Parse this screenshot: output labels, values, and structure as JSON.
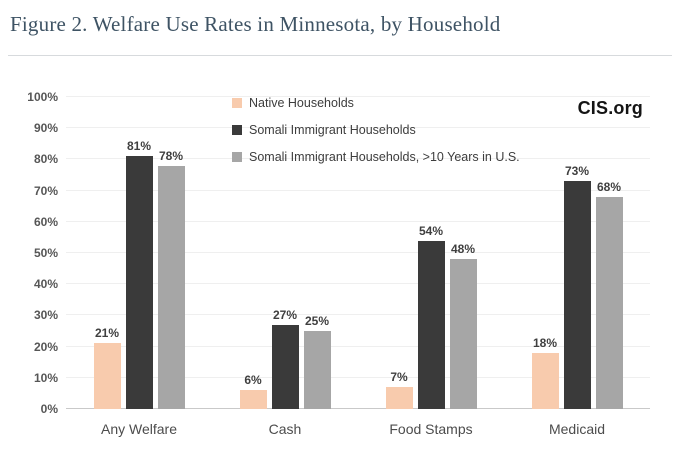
{
  "figure": {
    "title": "Figure 2. Welfare Use Rates in Minnesota, by Household",
    "source_label": "CIS.org"
  },
  "chart_data": {
    "type": "bar",
    "title": "Figure 2. Welfare Use Rates in Minnesota, by Household",
    "categories": [
      "Any Welfare",
      "Cash",
      "Food Stamps",
      "Medicaid"
    ],
    "series": [
      {
        "name": "Native Households",
        "color": "#f8cbad",
        "values": [
          21,
          6,
          7,
          18
        ]
      },
      {
        "name": "Somali Immigrant Households",
        "color": "#3a3a3a",
        "values": [
          81,
          27,
          54,
          73
        ]
      },
      {
        "name": "Somali Immigrant Households, >10 Years in U.S.",
        "color": "#a6a6a6",
        "values": [
          78,
          25,
          48,
          68
        ]
      }
    ],
    "value_label_format": "{v}%",
    "xlabel": "",
    "ylabel": "",
    "ylim": [
      0,
      100
    ],
    "ytick_step": 10,
    "yticks": [
      "0%",
      "10%",
      "20%",
      "30%",
      "40%",
      "50%",
      "60%",
      "70%",
      "80%",
      "90%",
      "100%"
    ],
    "grid": true,
    "legend_position": "top-left-of-plot"
  },
  "colors": {
    "title": "#3e5364",
    "gridline": "#efefef",
    "axis_line": "#c9c9c9",
    "tick_label": "#565656",
    "value_label": "#3f3f3f",
    "brand": "#141414"
  }
}
